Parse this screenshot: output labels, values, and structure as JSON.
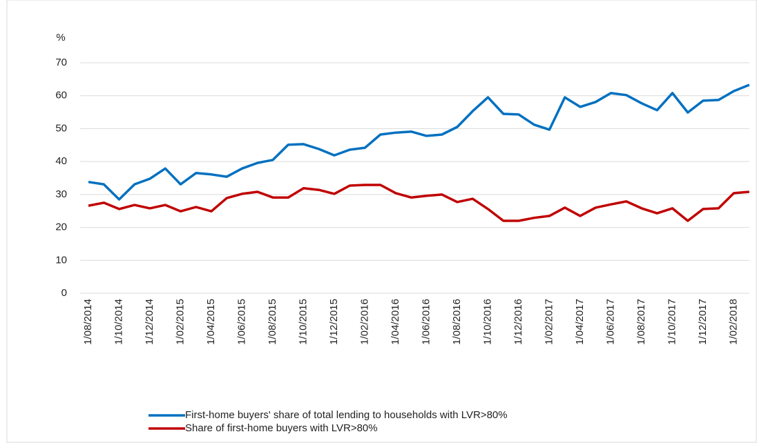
{
  "chart_data": {
    "type": "line",
    "y_label": "%",
    "categories": [
      "1/08/2014",
      null,
      "1/10/2014",
      null,
      "1/12/2014",
      null,
      "1/02/2015",
      null,
      "1/04/2015",
      null,
      "1/06/2015",
      null,
      "1/08/2015",
      null,
      "1/10/2015",
      null,
      "1/12/2015",
      null,
      "1/02/2016",
      null,
      "1/04/2016",
      null,
      "1/06/2016",
      null,
      "1/08/2016",
      null,
      "1/10/2016",
      null,
      "1/12/2016",
      null,
      "1/02/2017",
      null,
      "1/04/2017",
      null,
      "1/06/2017",
      null,
      "1/08/2017",
      null,
      "1/10/2017",
      null,
      "1/12/2017",
      null,
      "1/02/2018",
      null
    ],
    "series": [
      {
        "name": "First-home buyers' share of total lending to households with LVR>80%",
        "color": "#0070c0",
        "values": [
          33.8,
          33.1,
          28.5,
          33.1,
          34.8,
          37.9,
          33.1,
          36.5,
          36.1,
          35.4,
          37.9,
          39.6,
          40.5,
          45.1,
          45.3,
          43.8,
          41.9,
          43.6,
          44.2,
          48.2,
          48.8,
          49.1,
          47.8,
          48.2,
          50.5,
          55.3,
          59.5,
          54.5,
          54.3,
          51.2,
          49.7,
          59.5,
          56.6,
          58.1,
          60.8,
          60.2,
          57.7,
          55.6,
          60.8,
          54.9,
          58.5,
          58.7,
          61.4,
          63.3
        ]
      },
      {
        "name": "Share of first-home buyers with LVR>80%",
        "color": "#c00000",
        "values": [
          26.6,
          27.5,
          25.6,
          26.8,
          25.8,
          26.8,
          24.9,
          26.2,
          24.9,
          28.9,
          30.2,
          30.8,
          29.1,
          29.1,
          31.9,
          31.4,
          30.2,
          32.7,
          32.9,
          32.9,
          30.4,
          29.1,
          29.6,
          30.0,
          27.7,
          28.7,
          25.6,
          22.0,
          22.0,
          22.9,
          23.5,
          26.0,
          23.5,
          26.0,
          27.0,
          27.9,
          25.8,
          24.3,
          25.8,
          22.0,
          25.6,
          25.8,
          30.4,
          30.8
        ]
      }
    ],
    "ylim": [
      0,
      70
    ],
    "yticks": [
      0,
      10,
      20,
      30,
      40,
      50,
      60,
      70
    ],
    "grid": true
  }
}
